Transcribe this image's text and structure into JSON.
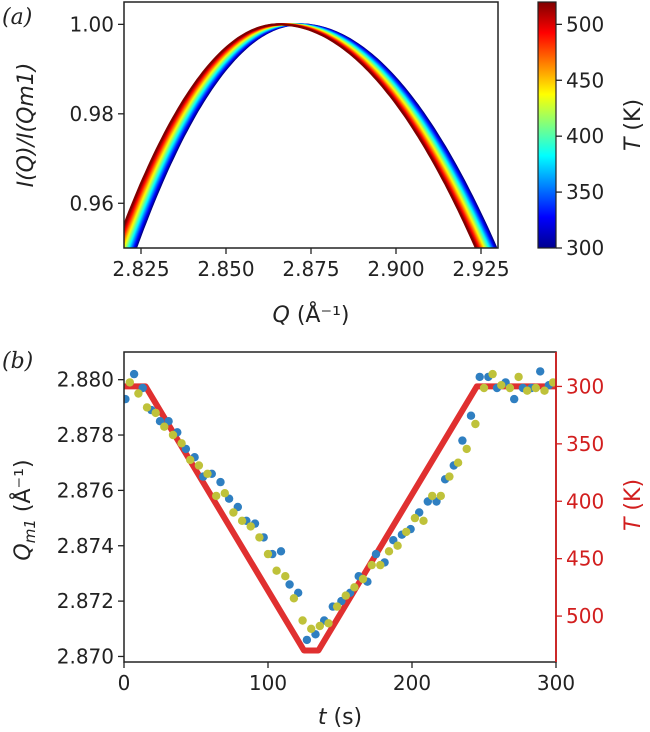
{
  "colors": {
    "axis": "#222222",
    "temp_line": "#e03030",
    "temp_axis": "#d21e1e",
    "series_blue": "#2f7fc1",
    "series_olive": "#bfc23a"
  },
  "chart_data": [
    {
      "panel_label": "(a)",
      "type": "line",
      "title": "",
      "xlabel": "Q (Å⁻¹)",
      "xlabel_main": "Q",
      "xlabel_unit": " (Å⁻¹)",
      "ylabel": "I(Q)/I(Q_m1)",
      "ylabel_display": "I(Q)/I(Qm1)",
      "xlim": [
        2.82,
        2.93
      ],
      "ylim": [
        0.95,
        1.005
      ],
      "xticks": [
        "2.825",
        "2.850",
        "2.875",
        "2.900",
        "2.925"
      ],
      "yticks": [
        "0.96",
        "0.98",
        "1.00"
      ],
      "xtick_values": [
        2.825,
        2.85,
        2.875,
        2.9,
        2.925
      ],
      "ytick_values": [
        0.96,
        0.98,
        1.0
      ],
      "peak_position_at_300K": 2.8715,
      "peak_position_at_520K": 2.8655,
      "peak_width_left": 0.048,
      "peak_width_right": 0.058,
      "curves_temperatures": [
        300,
        310,
        320,
        330,
        340,
        350,
        360,
        370,
        380,
        390,
        400,
        410,
        420,
        430,
        440,
        450,
        460,
        470,
        480,
        490,
        500,
        510,
        520
      ],
      "colorbar": {
        "label": "T (K)",
        "label_main": "T",
        "label_unit": " (K)",
        "range": [
          300,
          520
        ],
        "ticks": [
          "300",
          "350",
          "400",
          "450",
          "500"
        ],
        "tick_values": [
          300,
          350,
          400,
          450,
          500
        ],
        "colormap": "jet"
      }
    },
    {
      "panel_label": "(b)",
      "type": "scatter",
      "title": "",
      "xlabel": "t (s)",
      "xlabel_main": "t",
      "xlabel_unit": " (s)",
      "ylabel": "Q_m1 (Å⁻¹)",
      "ylabel_main": "Q",
      "ylabel_sub": "m1",
      "ylabel_unit": " (Å⁻¹)",
      "xlim": [
        0,
        300
      ],
      "ylim": [
        2.8698,
        2.881
      ],
      "xticks": [
        "0",
        "100",
        "200",
        "300"
      ],
      "xtick_values": [
        0,
        100,
        200,
        300
      ],
      "yticks": [
        "2.870",
        "2.872",
        "2.874",
        "2.876",
        "2.878",
        "2.880"
      ],
      "ytick_values": [
        2.87,
        2.872,
        2.874,
        2.876,
        2.878,
        2.88
      ],
      "right_axis": {
        "label": "T (K)",
        "label_main": "T",
        "label_unit": " (K)",
        "inverted": true,
        "ylim": [
          270,
          540
        ],
        "ticks": [
          "300",
          "350",
          "400",
          "450",
          "500"
        ],
        "tick_values": [
          300,
          350,
          400,
          450,
          500
        ],
        "color": "#d21e1e"
      },
      "temperature_profile": {
        "name": "T",
        "t": [
          0,
          15,
          125,
          135,
          245,
          300
        ],
        "T": [
          300,
          300,
          530,
          530,
          300,
          300
        ]
      },
      "series": [
        {
          "name": "blue",
          "color": "#2f7fc1",
          "x": [
            1,
            7,
            13,
            19,
            25,
            31,
            37,
            43,
            49,
            55,
            61,
            67,
            73,
            79,
            85,
            91,
            97,
            103,
            109,
            115,
            121,
            127,
            133,
            139,
            145,
            151,
            157,
            163,
            169,
            175,
            181,
            187,
            193,
            199,
            205,
            211,
            217,
            223,
            229,
            235,
            241,
            247,
            253,
            259,
            265,
            271,
            277,
            283,
            289,
            295
          ],
          "y": [
            2.8793,
            2.8802,
            2.8797,
            2.8789,
            2.8785,
            2.8785,
            2.8781,
            2.8775,
            2.8772,
            2.8765,
            2.8766,
            2.8763,
            2.8757,
            2.8754,
            2.8749,
            2.8748,
            2.8743,
            2.8737,
            2.8738,
            2.8726,
            2.8723,
            2.8706,
            2.8708,
            2.8713,
            2.8718,
            2.872,
            2.8723,
            2.8729,
            2.8727,
            2.8737,
            2.8734,
            2.8742,
            2.8744,
            2.8746,
            2.8752,
            2.8756,
            2.8756,
            2.8764,
            2.8769,
            2.8778,
            2.8787,
            2.8801,
            2.8801,
            2.8797,
            2.8799,
            2.8793,
            2.8797,
            2.8797,
            2.8803,
            2.8798
          ]
        },
        {
          "name": "olive",
          "color": "#bfc23a",
          "x": [
            4,
            10,
            16,
            22,
            28,
            34,
            40,
            46,
            52,
            58,
            64,
            70,
            76,
            82,
            88,
            94,
            100,
            106,
            112,
            118,
            124,
            130,
            136,
            142,
            148,
            154,
            160,
            166,
            172,
            178,
            184,
            190,
            196,
            202,
            208,
            214,
            220,
            226,
            232,
            238,
            244,
            250,
            256,
            262,
            268,
            274,
            280,
            286,
            292,
            298
          ],
          "y": [
            2.8799,
            2.8795,
            2.879,
            2.8788,
            2.8783,
            2.878,
            2.8777,
            2.8771,
            2.8769,
            2.8766,
            2.8758,
            2.8759,
            2.8752,
            2.8749,
            2.8747,
            2.8743,
            2.8737,
            2.8731,
            2.8729,
            2.8721,
            2.8713,
            2.871,
            2.8711,
            2.8712,
            2.8718,
            2.8722,
            2.8725,
            2.8728,
            2.8733,
            2.8733,
            2.8738,
            2.874,
            2.8745,
            2.875,
            2.8749,
            2.8758,
            2.8758,
            2.8765,
            2.877,
            2.8775,
            2.8784,
            2.8797,
            2.8802,
            2.8798,
            2.8797,
            2.8801,
            2.8796,
            2.8797,
            2.8796,
            2.8799
          ]
        }
      ]
    }
  ]
}
